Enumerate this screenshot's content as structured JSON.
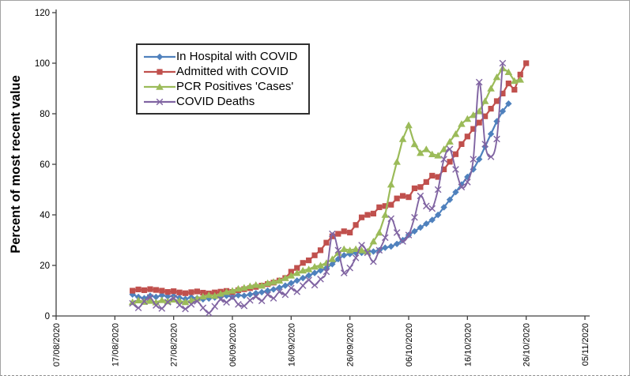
{
  "window": {
    "background": "#ffffff",
    "border_color": "#a3a3a3"
  },
  "chart_data": {
    "type": "line",
    "title": "",
    "xlabel": "",
    "ylabel": "Percent of most recent value",
    "ylim": [
      0,
      120
    ],
    "y_ticks": [
      0,
      20,
      40,
      60,
      80,
      100,
      120
    ],
    "x_ticks": [
      "07/08/2020",
      "17/08/2020",
      "27/08/2020",
      "06/09/2020",
      "16/09/2020",
      "26/09/2020",
      "06/10/2020",
      "16/10/2020",
      "26/10/2020",
      "05/11/2020"
    ],
    "x_tick_interval_days": 10,
    "grid": false,
    "legend_position": "inside-top-left",
    "axis_color": "#404040",
    "series": [
      {
        "name": "In Hospital with COVID",
        "color": "#4F81BD",
        "marker": "diamond",
        "smooth": false,
        "start_date": "20/08/2020",
        "end_date": "23/10/2020",
        "start_day_offset": 13,
        "values": [
          8.5,
          7.5,
          7,
          8,
          7.5,
          8.2,
          7.7,
          7.9,
          7.2,
          6.7,
          7.4,
          7,
          6.6,
          6.9,
          7.3,
          7.7,
          8,
          7.6,
          8.2,
          8,
          8.5,
          9,
          9.4,
          10,
          10.5,
          11.2,
          12,
          13,
          14,
          15,
          16,
          17,
          18,
          19,
          20.5,
          22.5,
          24,
          24.5,
          25,
          25,
          25.5,
          25.5,
          26,
          27,
          27.5,
          28.5,
          30,
          32,
          33.5,
          35,
          36.5,
          38,
          40,
          43,
          46,
          49,
          52,
          55,
          58,
          62,
          67,
          72,
          77,
          81,
          84
        ]
      },
      {
        "name": "Admitted with COVID",
        "color": "#C0504D",
        "marker": "square",
        "smooth": false,
        "start_date": "20/08/2020",
        "end_date": "26/10/2020",
        "start_day_offset": 13,
        "values": [
          10,
          10.5,
          10.2,
          10.6,
          10.3,
          10,
          9.5,
          9.8,
          9.3,
          9,
          9.4,
          9.7,
          9.2,
          8.9,
          9.3,
          9.6,
          9.9,
          9.5,
          10.2,
          10.6,
          11,
          11.5,
          12,
          12.6,
          13.2,
          14,
          15,
          17.5,
          19,
          21,
          22,
          24,
          26,
          29,
          31.5,
          32.5,
          33.5,
          33,
          36,
          39,
          40,
          40.5,
          43,
          43.5,
          44,
          46.5,
          47.5,
          47,
          50.5,
          51,
          53,
          55.5,
          55,
          58,
          61,
          64,
          68,
          71,
          74,
          76.5,
          79,
          82,
          85,
          88,
          92,
          89.5,
          95.5,
          100
        ]
      },
      {
        "name": "PCR Positives 'Cases'",
        "color": "#9BBB59",
        "marker": "triangle",
        "smooth": false,
        "start_date": "20/08/2020",
        "end_date": "25/10/2020",
        "start_day_offset": 13,
        "values": [
          5.5,
          6.2,
          5.6,
          6,
          5.4,
          6.3,
          5.8,
          6.5,
          6,
          5.5,
          6.2,
          7,
          7.7,
          8.3,
          8,
          8.8,
          9.5,
          10,
          10.8,
          11.2,
          11.8,
          12.3,
          12,
          13,
          13.5,
          14,
          15,
          16,
          17,
          18,
          18.5,
          19.5,
          20,
          21,
          22.5,
          25,
          26.5,
          26,
          26.5,
          26,
          25.5,
          29.5,
          33,
          40,
          52,
          61,
          70,
          75.5,
          68,
          64.5,
          66,
          64,
          63.5,
          66,
          69,
          72,
          76,
          78,
          79.5,
          81,
          85,
          90,
          94.5,
          98,
          96.5,
          93,
          93.5
        ]
      },
      {
        "name": "COVID Deaths",
        "color": "#8064A2",
        "marker": "x",
        "smooth": true,
        "start_date": "20/08/2020",
        "end_date": "22/10/2020",
        "start_day_offset": 13,
        "values": [
          5,
          3.2,
          5.8,
          7.3,
          4.2,
          3,
          5.5,
          7,
          4.3,
          2.8,
          4.6,
          5.8,
          3.2,
          1.2,
          3.8,
          6.5,
          5.4,
          7.2,
          4.6,
          4,
          6.2,
          7.6,
          6,
          8.4,
          7,
          9.5,
          8.4,
          11,
          9.6,
          12,
          14.2,
          12.2,
          14.6,
          17.5,
          32.5,
          26,
          17,
          19,
          23,
          28,
          25,
          21.5,
          26,
          31,
          38.5,
          33,
          29.5,
          32,
          39,
          47.5,
          43.5,
          42.5,
          50,
          62,
          66,
          58,
          51,
          53,
          62,
          92.5,
          68,
          63,
          70,
          100
        ]
      }
    ]
  }
}
